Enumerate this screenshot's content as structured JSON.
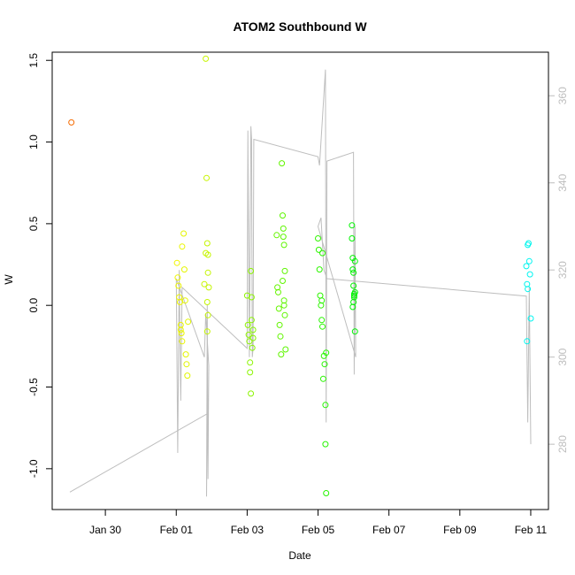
{
  "chart_data": {
    "type": "scatter",
    "title": "ATOM2 Southbound W",
    "xlabel": "Date",
    "ylabel": "W",
    "x_ticks": [
      "Jan 30",
      "Feb 01",
      "Feb 03",
      "Feb 05",
      "Feb 07",
      "Feb 09",
      "Feb 11"
    ],
    "xlim": [
      "2012-01-28T12:00",
      "2012-02-11T12:00"
    ],
    "ylim": [
      -1.25,
      1.55
    ],
    "y_ticks": [
      -1.0,
      -0.5,
      0.0,
      0.5,
      1.0,
      1.5
    ],
    "y_tick_labels": [
      "-1.0",
      "-0.5",
      "0.0",
      "0.5",
      "1.0",
      "1.5"
    ],
    "y2_ticks": [
      280,
      300,
      320,
      340,
      360
    ],
    "y2lim": [
      265,
      370
    ],
    "grid": false,
    "legend": "none",
    "colors": {
      "points": "hue gradient orange to cyan (by time)",
      "line": "#bebebe",
      "right_axis": "#bdbdbd"
    },
    "series": [
      {
        "role": "points",
        "y_axis": "left",
        "points": [
          [
            "2012-01-29T01:00",
            1.12
          ],
          [
            "2012-02-01T00:30",
            0.26
          ],
          [
            "2012-02-01T01:00",
            0.17
          ],
          [
            "2012-02-01T01:30",
            0.12
          ],
          [
            "2012-02-01T02:00",
            0.05
          ],
          [
            "2012-02-01T02:30",
            0.02
          ],
          [
            "2012-02-01T03:00",
            -0.12
          ],
          [
            "2012-02-01T03:30",
            -0.17
          ],
          [
            "2012-02-01T04:00",
            0.36
          ],
          [
            "2012-02-01T05:00",
            0.44
          ],
          [
            "2012-02-01T05:30",
            0.22
          ],
          [
            "2012-02-01T06:00",
            0.03
          ],
          [
            "2012-02-01T06:30",
            -0.3
          ],
          [
            "2012-02-01T07:00",
            -0.36
          ],
          [
            "2012-02-01T07:30",
            -0.43
          ],
          [
            "2012-02-01T08:00",
            -0.1
          ],
          [
            "2012-02-01T03:00",
            -0.15
          ],
          [
            "2012-02-01T04:00",
            -0.22
          ],
          [
            "2012-02-01T19:00",
            0.13
          ],
          [
            "2012-02-01T20:00",
            1.51
          ],
          [
            "2012-02-01T20:30",
            0.78
          ],
          [
            "2012-02-01T21:00",
            0.38
          ],
          [
            "2012-02-01T21:30",
            0.31
          ],
          [
            "2012-02-01T20:00",
            0.32
          ],
          [
            "2012-02-01T21:00",
            0.02
          ],
          [
            "2012-02-01T21:30",
            -0.06
          ],
          [
            "2012-02-01T21:00",
            -0.16
          ],
          [
            "2012-02-01T22:00",
            0.11
          ],
          [
            "2012-02-01T21:30",
            0.2
          ],
          [
            "2012-02-03T00:00",
            0.06
          ],
          [
            "2012-02-03T00:30",
            -0.12
          ],
          [
            "2012-02-03T01:00",
            -0.18
          ],
          [
            "2012-02-03T01:30",
            -0.22
          ],
          [
            "2012-02-03T02:00",
            -0.35
          ],
          [
            "2012-02-03T02:30",
            -0.54
          ],
          [
            "2012-02-03T02:00",
            -0.41
          ],
          [
            "2012-02-03T02:30",
            0.21
          ],
          [
            "2012-02-03T03:00",
            0.05
          ],
          [
            "2012-02-03T03:30",
            -0.26
          ],
          [
            "2012-02-03T04:00",
            -0.2
          ],
          [
            "2012-02-03T03:00",
            -0.09
          ],
          [
            "2012-02-03T04:00",
            -0.15
          ],
          [
            "2012-02-03T20:00",
            0.43
          ],
          [
            "2012-02-03T20:30",
            0.11
          ],
          [
            "2012-02-03T21:00",
            0.08
          ],
          [
            "2012-02-03T21:30",
            -0.02
          ],
          [
            "2012-02-03T22:00",
            -0.12
          ],
          [
            "2012-02-03T22:30",
            -0.19
          ],
          [
            "2012-02-03T23:00",
            -0.3
          ],
          [
            "2012-02-03T23:30",
            0.87
          ],
          [
            "2012-02-04T00:00",
            0.55
          ],
          [
            "2012-02-04T00:30",
            0.47
          ],
          [
            "2012-02-04T01:00",
            0.37
          ],
          [
            "2012-02-04T01:30",
            0.21
          ],
          [
            "2012-02-04T00:00",
            0.15
          ],
          [
            "2012-02-04T01:00",
            0.03
          ],
          [
            "2012-02-04T01:30",
            -0.06
          ],
          [
            "2012-02-04T02:00",
            -0.27
          ],
          [
            "2012-02-04T00:30",
            0.42
          ],
          [
            "2012-02-04T01:00",
            0.0
          ],
          [
            "2012-02-05T00:00",
            0.41
          ],
          [
            "2012-02-05T00:30",
            0.34
          ],
          [
            "2012-02-05T01:00",
            0.22
          ],
          [
            "2012-02-05T01:30",
            0.06
          ],
          [
            "2012-02-05T02:00",
            0.0
          ],
          [
            "2012-02-05T02:30",
            -0.09
          ],
          [
            "2012-02-05T03:00",
            -0.13
          ],
          [
            "2012-02-05T03:30",
            -0.45
          ],
          [
            "2012-02-05T04:00",
            -0.31
          ],
          [
            "2012-02-05T04:30",
            -0.36
          ],
          [
            "2012-02-05T05:00",
            -0.61
          ],
          [
            "2012-02-05T05:00",
            -0.85
          ],
          [
            "2012-02-05T05:30",
            -1.15
          ],
          [
            "2012-02-05T05:30",
            -0.29
          ],
          [
            "2012-02-05T02:30",
            0.03
          ],
          [
            "2012-02-05T03:00",
            0.32
          ],
          [
            "2012-02-05T23:00",
            0.49
          ],
          [
            "2012-02-05T23:00",
            0.41
          ],
          [
            "2012-02-05T23:30",
            0.29
          ],
          [
            "2012-02-05T23:30",
            0.22
          ],
          [
            "2012-02-06T00:00",
            0.2
          ],
          [
            "2012-02-06T00:00",
            0.12
          ],
          [
            "2012-02-06T00:30",
            0.07
          ],
          [
            "2012-02-06T00:30",
            0.06
          ],
          [
            "2012-02-06T00:00",
            0.02
          ],
          [
            "2012-02-05T23:30",
            -0.01
          ],
          [
            "2012-02-06T01:00",
            -0.16
          ],
          [
            "2012-02-06T01:00",
            0.27
          ],
          [
            "2012-02-06T01:00",
            0.08
          ],
          [
            "2012-02-06T00:30",
            0.05
          ],
          [
            "2012-02-10T21:00",
            0.24
          ],
          [
            "2012-02-10T21:30",
            0.13
          ],
          [
            "2012-02-10T22:00",
            0.37
          ],
          [
            "2012-02-10T22:30",
            0.38
          ],
          [
            "2012-02-10T23:00",
            0.27
          ],
          [
            "2012-02-10T23:30",
            0.19
          ],
          [
            "2012-02-10T22:00",
            0.1
          ],
          [
            "2012-02-10T21:30",
            -0.22
          ],
          [
            "2012-02-11T00:00",
            -0.08
          ]
        ]
      },
      {
        "role": "line",
        "y_axis": "right",
        "points": [
          [
            "2012-01-29T00:00",
            269
          ],
          [
            "2012-02-01T21:00",
            287
          ],
          [
            "2012-02-01T20:30",
            268
          ],
          [
            "2012-02-01T21:00",
            312
          ],
          [
            "2012-02-01T21:30",
            272
          ],
          [
            "2012-02-01T22:00",
            298
          ],
          [
            "2012-02-01T20:00",
            310
          ],
          [
            "2012-02-01T19:00",
            300
          ],
          [
            "2012-02-01T00:00",
            318
          ],
          [
            "2012-02-01T01:00",
            278
          ],
          [
            "2012-02-01T02:00",
            320
          ],
          [
            "2012-02-01T03:00",
            290
          ],
          [
            "2012-02-01T04:00",
            316
          ],
          [
            "2012-02-03T00:00",
            302
          ],
          [
            "2012-02-03T00:30",
            352
          ],
          [
            "2012-02-03T01:30",
            300
          ],
          [
            "2012-02-03T02:30",
            353
          ],
          [
            "2012-02-03T03:00",
            350
          ],
          [
            "2012-02-03T03:30",
            300
          ],
          [
            "2012-02-03T04:00",
            302
          ],
          [
            "2012-02-03T04:30",
            350
          ],
          [
            "2012-02-05T00:00",
            346
          ],
          [
            "2012-02-05T01:00",
            344
          ],
          [
            "2012-02-05T05:00",
            366
          ],
          [
            "2012-02-05T05:30",
            285
          ],
          [
            "2012-02-05T06:00",
            345
          ],
          [
            "2012-02-06T00:00",
            347
          ],
          [
            "2012-02-06T00:30",
            296
          ],
          [
            "2012-02-06T01:00",
            330
          ],
          [
            "2012-02-06T01:30",
            300
          ],
          [
            "2012-02-05T00:00",
            330
          ],
          [
            "2012-02-05T02:00",
            332
          ],
          [
            "2012-02-05T04:00",
            320
          ],
          [
            "2012-02-05T06:00",
            318
          ],
          [
            "2012-02-10T21:00",
            314
          ],
          [
            "2012-02-10T22:00",
            285
          ],
          [
            "2012-02-10T23:00",
            316
          ],
          [
            "2012-02-11T00:00",
            280
          ]
        ]
      }
    ]
  }
}
